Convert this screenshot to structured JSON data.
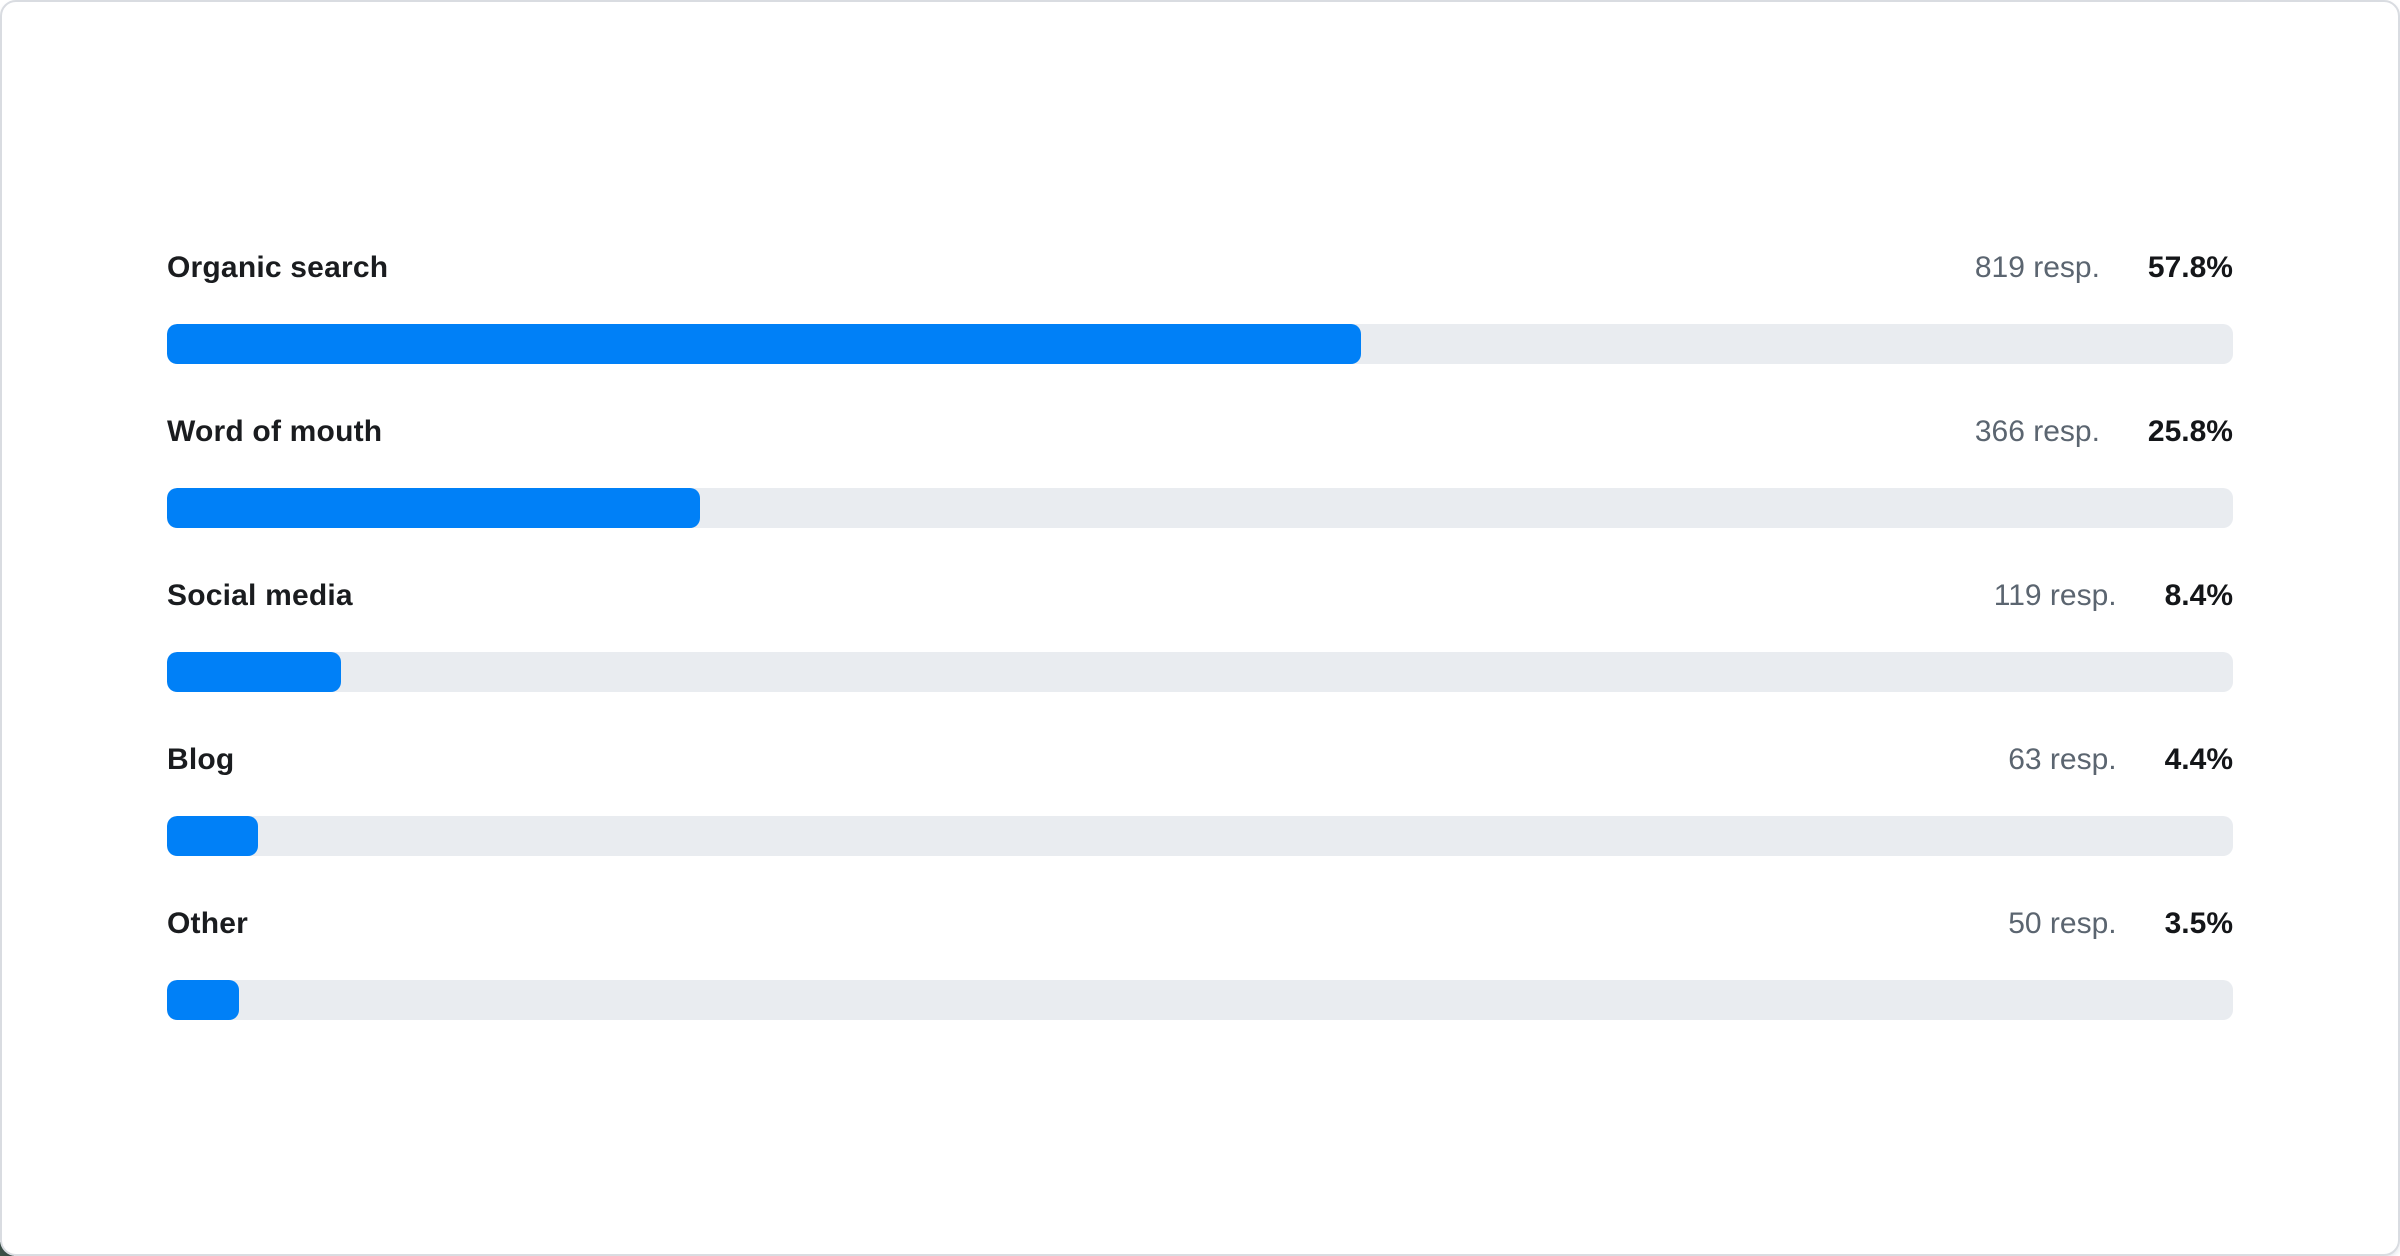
{
  "card": {
    "kind": "survey-results-chart"
  },
  "colors": {
    "bar": "#0080f7",
    "track": "#e9ecf0",
    "category_label": "#1a1c1f",
    "responses_text": "#5b6570",
    "percent_text": "#141619",
    "card_border": "#d9dce1",
    "card_background": "#ffffff",
    "corner_fragment": "#3d5147"
  },
  "chart_data": {
    "type": "bar",
    "orientation": "horizontal",
    "title": "",
    "xlabel": "",
    "ylabel": "",
    "xlim": [
      0,
      100
    ],
    "grid": false,
    "legend": false,
    "categories": [
      "Organic search",
      "Word of mouth",
      "Social media",
      "Blog",
      "Other"
    ],
    "series": [
      {
        "name": "Responses",
        "values": [
          819,
          366,
          119,
          63,
          50
        ]
      }
    ],
    "percents": [
      57.8,
      25.8,
      8.4,
      4.4,
      3.5
    ],
    "rows": [
      {
        "label": "Organic search",
        "responses_label": "819 resp.",
        "percent_label": "57.8%",
        "percent": 57.8
      },
      {
        "label": "Word of mouth",
        "responses_label": "366 resp.",
        "percent_label": "25.8%",
        "percent": 25.8
      },
      {
        "label": "Social media",
        "responses_label": "119 resp.",
        "percent_label": "8.4%",
        "percent": 8.4
      },
      {
        "label": "Blog",
        "responses_label": "63 resp.",
        "percent_label": "4.4%",
        "percent": 4.4
      },
      {
        "label": "Other",
        "responses_label": "50 resp.",
        "percent_label": "3.5%",
        "percent": 3.5
      }
    ]
  }
}
